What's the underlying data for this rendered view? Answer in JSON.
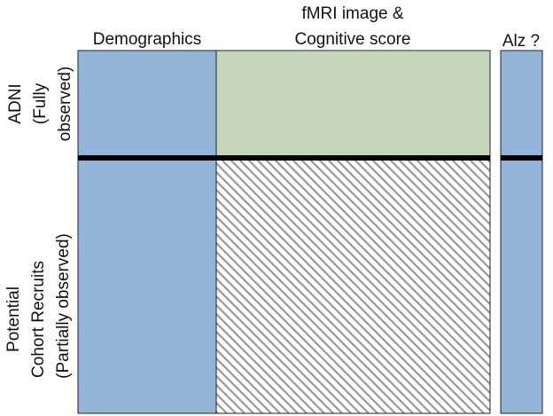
{
  "columns": {
    "demographics": {
      "lines": [
        "Demographics"
      ]
    },
    "fmri": {
      "lines": [
        "fMRI image &",
        "Cognitive score"
      ]
    },
    "alz": {
      "lines": [
        "Alz ?"
      ]
    }
  },
  "rows": {
    "adni": {
      "lines": [
        "ADNI",
        "(Fully",
        "observed)"
      ]
    },
    "recruits": {
      "lines": [
        "Potential",
        "Cohort Recruits",
        "(Partially observed)"
      ]
    }
  }
}
